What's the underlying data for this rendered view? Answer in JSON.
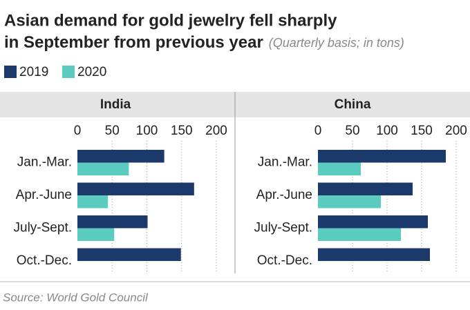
{
  "title": "Asian demand for gold jewelry fell sharply",
  "title_line2": "in September from previous year",
  "subtitle": "(Quarterly basis; in tons)",
  "source": "Source: World Gold Council",
  "chart_data": [
    {
      "type": "bar",
      "orientation": "horizontal",
      "title": "India",
      "categories": [
        "Jan.-Mar.",
        "Apr.-June",
        "July-Sept.",
        "Oct.-Dec."
      ],
      "series": [
        {
          "name": "2019",
          "color": "#1b3a6b",
          "values": [
            125,
            168,
            101,
            149
          ]
        },
        {
          "name": "2020",
          "color": "#5ccbc0",
          "values": [
            74,
            44,
            53,
            null
          ]
        }
      ],
      "xlim": [
        0,
        200
      ],
      "xticks": [
        0,
        50,
        100,
        150,
        200
      ],
      "grid": true
    },
    {
      "type": "bar",
      "orientation": "horizontal",
      "title": "China",
      "categories": [
        "Jan.-Mar.",
        "Apr.-June",
        "July-Sept.",
        "Oct.-Dec."
      ],
      "series": [
        {
          "color": "#1b3a6b",
          "values": [
            185,
            137,
            159,
            162
          ]
        },
        {
          "color": "#5ccbc0",
          "values": [
            62,
            91,
            120,
            null
          ]
        }
      ],
      "xlim": [
        0,
        200
      ],
      "xticks": [
        0,
        50,
        100,
        150,
        200
      ],
      "grid": true
    }
  ]
}
